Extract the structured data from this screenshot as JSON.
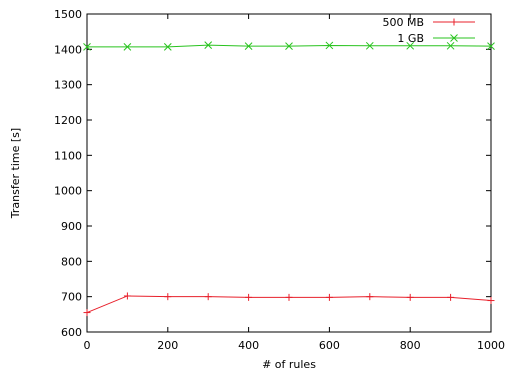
{
  "chart_data": {
    "type": "line",
    "xlabel": "# of rules",
    "ylabel": "Transfer time [s]",
    "xlim": [
      0,
      1000
    ],
    "ylim": [
      600,
      1500
    ],
    "xticks": [
      0,
      200,
      400,
      600,
      800,
      1000
    ],
    "yticks": [
      600,
      700,
      800,
      900,
      1000,
      1100,
      1200,
      1300,
      1400,
      1500
    ],
    "grid": false,
    "legend_position": "top-right",
    "x": [
      0,
      100,
      200,
      300,
      400,
      500,
      600,
      700,
      800,
      900,
      1000
    ],
    "series": [
      {
        "name": "500 MB",
        "color": "#e8202b",
        "marker": "plus",
        "values": [
          655,
          702,
          700,
          700,
          698,
          698,
          698,
          700,
          698,
          698,
          689
        ]
      },
      {
        "name": "1 GB",
        "color": "#29c31f",
        "marker": "cross",
        "values": [
          1407,
          1407,
          1407,
          1412,
          1409,
          1409,
          1411,
          1410,
          1410,
          1410,
          1409
        ]
      }
    ]
  }
}
